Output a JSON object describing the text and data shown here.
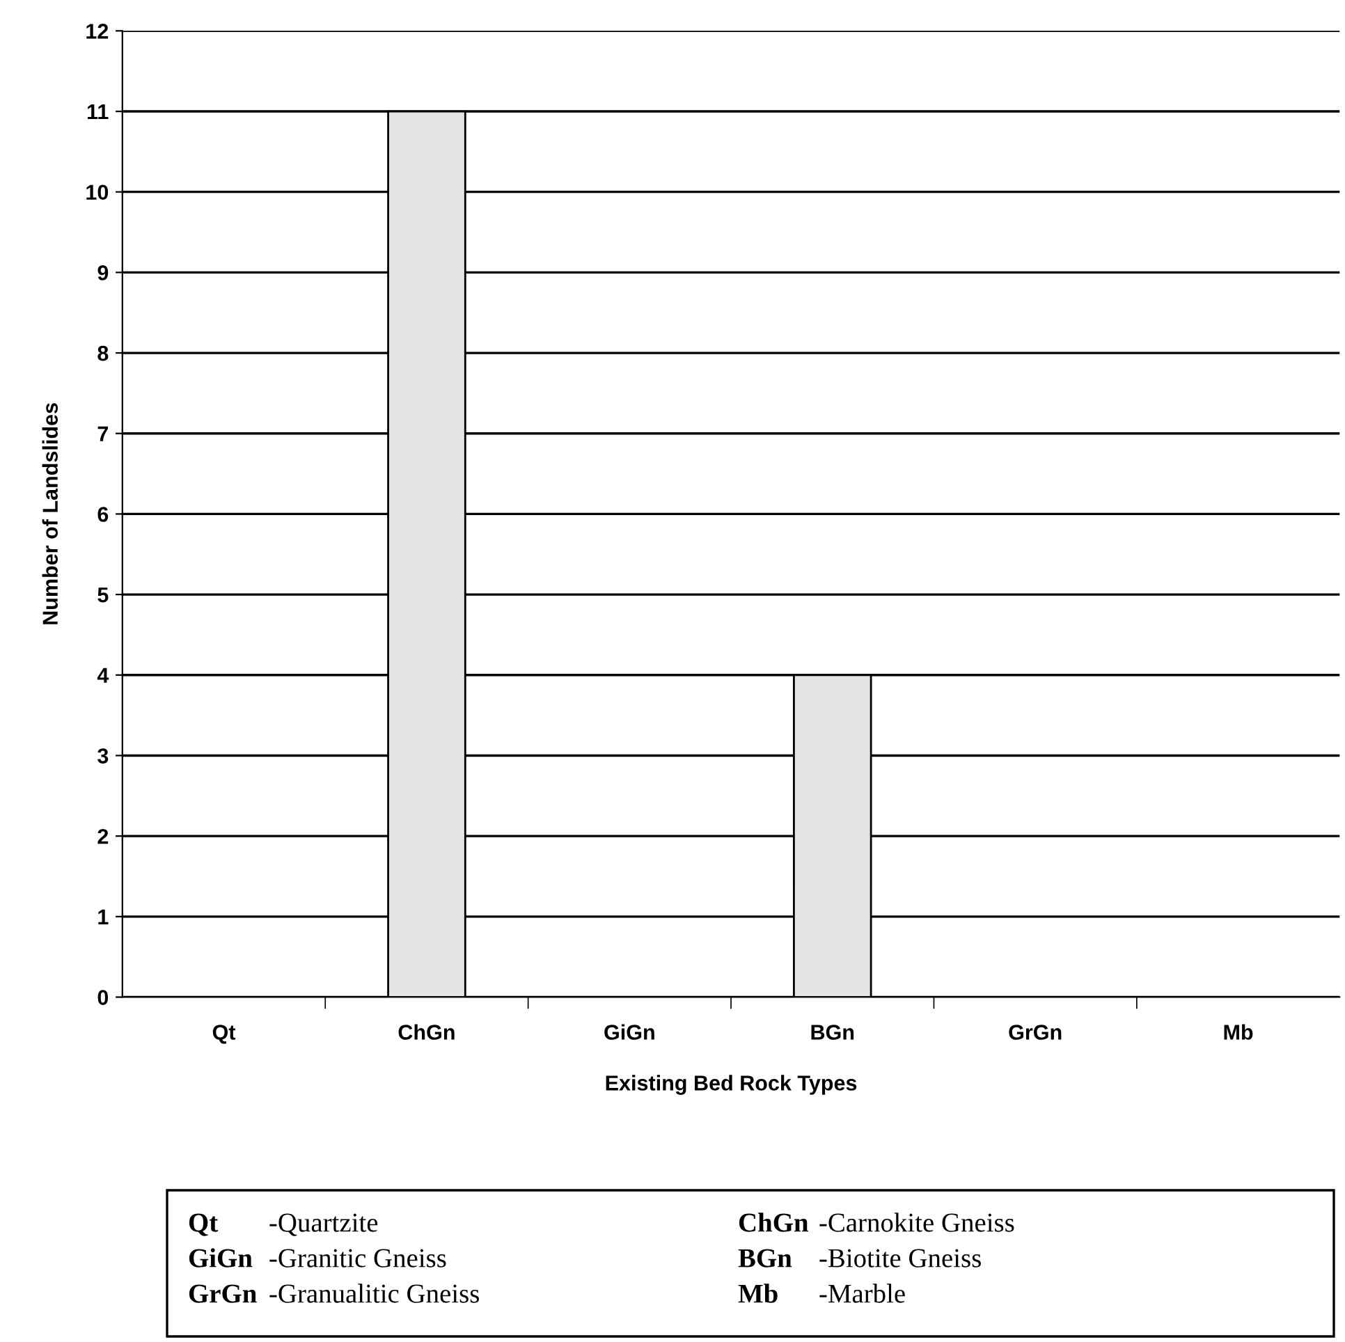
{
  "chart_data": {
    "type": "bar",
    "xlabel": "Existing Bed Rock Types",
    "ylabel": "Number of Landslides",
    "categories": [
      "Qt",
      "ChGn",
      "GiGn",
      "BGn",
      "GrGn",
      "Mb"
    ],
    "values": [
      0,
      11,
      0,
      4,
      0,
      0
    ],
    "color": "#e4e4e4",
    "ylim": [
      0,
      12
    ],
    "yticks": [
      0,
      1,
      2,
      3,
      4,
      5,
      6,
      7,
      8,
      9,
      10,
      11,
      12
    ],
    "grid": "y",
    "legend": false,
    "annotations": [
      "Qt -Quartzite",
      "ChGn -Carnokite Gneiss",
      "GiGn -Granitic Gneiss",
      "BGn -Biotite Gneiss",
      "GrGn -Granualitic Gneiss",
      "Mb -Marble"
    ]
  }
}
